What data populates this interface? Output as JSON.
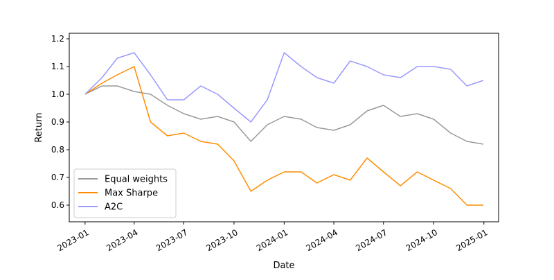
{
  "chart_data": {
    "type": "line",
    "title": "",
    "xlabel": "Date",
    "ylabel": "Return",
    "xlim": [
      "2022-12-03",
      "2025-01-28"
    ],
    "ylim": [
      0.54,
      1.22
    ],
    "grid": false,
    "legend_position": "lower-left",
    "x_tick_labels": [
      "2023-01",
      "2023-04",
      "2023-07",
      "2023-10",
      "2024-01",
      "2024-04",
      "2024-07",
      "2024-10",
      "2025-01"
    ],
    "y_tick_labels": [
      "0.6",
      "0.7",
      "0.8",
      "0.9",
      "1.0",
      "1.1",
      "1.2"
    ],
    "x": [
      "2023-01-01",
      "2023-02-01",
      "2023-03-01",
      "2023-04-01",
      "2023-05-01",
      "2023-06-01",
      "2023-07-01",
      "2023-08-01",
      "2023-09-01",
      "2023-10-01",
      "2023-11-01",
      "2023-12-01",
      "2024-01-01",
      "2024-02-01",
      "2024-03-01",
      "2024-04-01",
      "2024-05-01",
      "2024-06-01",
      "2024-07-01",
      "2024-08-01",
      "2024-09-01",
      "2024-10-01",
      "2024-11-01",
      "2024-12-01",
      "2024-12-31"
    ],
    "series": [
      {
        "name": "Equal weights",
        "color": "#999999",
        "values": [
          1.0,
          1.03,
          1.03,
          1.01,
          1.0,
          0.96,
          0.93,
          0.91,
          0.92,
          0.9,
          0.83,
          0.89,
          0.92,
          0.91,
          0.88,
          0.87,
          0.89,
          0.94,
          0.96,
          0.92,
          0.93,
          0.91,
          0.86,
          0.83,
          0.82
        ]
      },
      {
        "name": "Max Sharpe",
        "color": "#ff8c00",
        "values": [
          1.0,
          1.04,
          1.07,
          1.1,
          0.9,
          0.85,
          0.86,
          0.83,
          0.82,
          0.76,
          0.65,
          0.69,
          0.72,
          0.72,
          0.68,
          0.71,
          0.69,
          0.77,
          0.72,
          0.67,
          0.72,
          0.69,
          0.66,
          0.6,
          0.6
        ]
      },
      {
        "name": "A2C",
        "color": "#9999ff",
        "values": [
          1.0,
          1.06,
          1.13,
          1.15,
          1.07,
          0.98,
          0.98,
          1.03,
          1.0,
          0.95,
          0.9,
          0.98,
          1.15,
          1.1,
          1.06,
          1.04,
          1.12,
          1.1,
          1.07,
          1.06,
          1.1,
          1.1,
          1.09,
          1.03,
          1.05
        ]
      }
    ]
  }
}
